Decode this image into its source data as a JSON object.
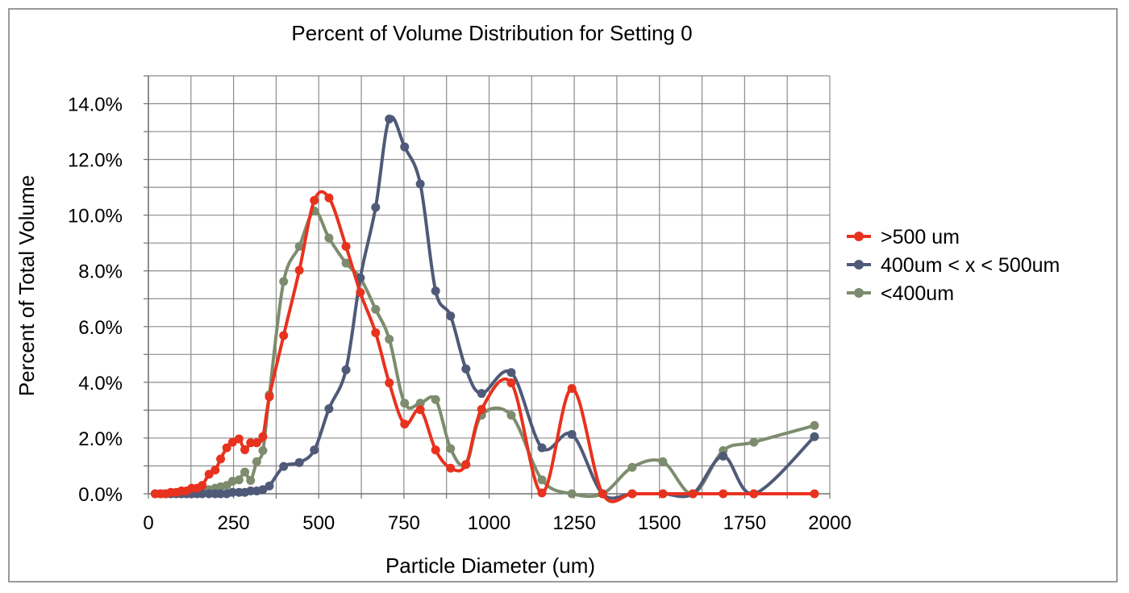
{
  "chart_data": {
    "type": "line",
    "title": "Percent of Volume Distribution for Setting 0",
    "xlabel": "Particle Diameter (um)",
    "ylabel": "Percent of Total Volume",
    "xlim": [
      0,
      2000
    ],
    "ylim": [
      0,
      0.14
    ],
    "x_ticks": [
      0,
      250,
      500,
      750,
      1000,
      1250,
      1500,
      1750,
      2000
    ],
    "x_tick_labels": [
      "0",
      "250",
      "500",
      "750",
      "1000",
      "1250",
      "1500",
      "1750",
      "2000"
    ],
    "y_ticks": [
      0,
      0.02,
      0.04,
      0.06,
      0.08,
      0.1,
      0.12,
      0.14
    ],
    "y_tick_labels": [
      "0.0%",
      "2.0%",
      "4.0%",
      "6.0%",
      "8.0%",
      "10.0%",
      "12.0%",
      "14.0%"
    ],
    "grid": true,
    "legend_position": "right",
    "series": [
      {
        "name": ">500 um",
        "color": "#e8321e",
        "points": [
          [
            20,
            0.0
          ],
          [
            36,
            0.0
          ],
          [
            51,
            0.0
          ],
          [
            66,
            0.0005
          ],
          [
            82,
            0.0005
          ],
          [
            97,
            0.001
          ],
          [
            112,
            0.001
          ],
          [
            127,
            0.002
          ],
          [
            143,
            0.002
          ],
          [
            158,
            0.003
          ],
          [
            178,
            0.007
          ],
          [
            196,
            0.0085
          ],
          [
            212,
            0.0125
          ],
          [
            230,
            0.0165
          ],
          [
            247,
            0.0185
          ],
          [
            266,
            0.0197
          ],
          [
            283,
            0.0158
          ],
          [
            300,
            0.0183
          ],
          [
            318,
            0.0183
          ],
          [
            336,
            0.0205
          ],
          [
            355,
            0.0348
          ],
          [
            397,
            0.0568
          ],
          [
            443,
            0.0802
          ],
          [
            487,
            0.1053
          ],
          [
            530,
            0.1062
          ],
          [
            580,
            0.0888
          ],
          [
            622,
            0.0722
          ],
          [
            667,
            0.0578
          ],
          [
            707,
            0.0398
          ],
          [
            752,
            0.025
          ],
          [
            798,
            0.0302
          ],
          [
            843,
            0.0157
          ],
          [
            887,
            0.0092
          ],
          [
            932,
            0.0105
          ],
          [
            978,
            0.0303
          ],
          [
            1065,
            0.0398
          ],
          [
            1155,
            0.0003
          ],
          [
            1243,
            0.0378
          ],
          [
            1333,
            0.0
          ],
          [
            1420,
            0.0
          ],
          [
            1510,
            0.0
          ],
          [
            1598,
            0.0
          ],
          [
            1687,
            0.0
          ],
          [
            1777,
            0.0
          ],
          [
            1955,
            0.0
          ]
        ]
      },
      {
        "name": "400um < x < 500um",
        "color": "#4f5a78",
        "points": [
          [
            20,
            0.0
          ],
          [
            36,
            0.0
          ],
          [
            51,
            0.0
          ],
          [
            66,
            0.0
          ],
          [
            82,
            0.0
          ],
          [
            97,
            0.0
          ],
          [
            112,
            0.0
          ],
          [
            127,
            0.0
          ],
          [
            143,
            0.0
          ],
          [
            158,
            0.0
          ],
          [
            178,
            0.0
          ],
          [
            196,
            0.0
          ],
          [
            212,
            0.0
          ],
          [
            230,
            0.0
          ],
          [
            247,
            0.0005
          ],
          [
            266,
            0.0005
          ],
          [
            283,
            0.0005
          ],
          [
            300,
            0.001
          ],
          [
            318,
            0.001
          ],
          [
            336,
            0.0015
          ],
          [
            355,
            0.0028
          ],
          [
            397,
            0.0098
          ],
          [
            443,
            0.0112
          ],
          [
            487,
            0.0157
          ],
          [
            530,
            0.0305
          ],
          [
            580,
            0.0445
          ],
          [
            622,
            0.0775
          ],
          [
            667,
            0.1028
          ],
          [
            707,
            0.1345
          ],
          [
            752,
            0.1245
          ],
          [
            798,
            0.1112
          ],
          [
            843,
            0.0728
          ],
          [
            887,
            0.0638
          ],
          [
            932,
            0.0448
          ],
          [
            978,
            0.036
          ],
          [
            1065,
            0.0435
          ],
          [
            1155,
            0.0165
          ],
          [
            1243,
            0.0213
          ],
          [
            1333,
            0.0
          ],
          [
            1420,
            0.0
          ],
          [
            1510,
            0.0
          ],
          [
            1598,
            0.0
          ],
          [
            1687,
            0.0135
          ],
          [
            1777,
            0.0
          ],
          [
            1955,
            0.0205
          ]
        ]
      },
      {
        "name": "<400um",
        "color": "#7d8c6e",
        "points": [
          [
            20,
            0.0
          ],
          [
            36,
            0.0
          ],
          [
            51,
            0.0
          ],
          [
            66,
            0.0
          ],
          [
            82,
            0.0
          ],
          [
            97,
            0.0
          ],
          [
            112,
            0.0
          ],
          [
            127,
            0.0
          ],
          [
            143,
            0.0005
          ],
          [
            158,
            0.001
          ],
          [
            178,
            0.0015
          ],
          [
            196,
            0.002
          ],
          [
            212,
            0.0025
          ],
          [
            230,
            0.003
          ],
          [
            247,
            0.0045
          ],
          [
            266,
            0.005
          ],
          [
            283,
            0.0078
          ],
          [
            300,
            0.0048
          ],
          [
            318,
            0.0115
          ],
          [
            336,
            0.0155
          ],
          [
            355,
            0.0355
          ],
          [
            397,
            0.0762
          ],
          [
            443,
            0.0888
          ],
          [
            487,
            0.1015
          ],
          [
            530,
            0.0918
          ],
          [
            580,
            0.0828
          ],
          [
            622,
            0.0775
          ],
          [
            667,
            0.0662
          ],
          [
            707,
            0.0555
          ],
          [
            752,
            0.0325
          ],
          [
            798,
            0.0325
          ],
          [
            843,
            0.0338
          ],
          [
            887,
            0.0162
          ],
          [
            932,
            0.0105
          ],
          [
            978,
            0.0282
          ],
          [
            1065,
            0.0282
          ],
          [
            1155,
            0.005
          ],
          [
            1243,
            0.0
          ],
          [
            1333,
            0.0
          ],
          [
            1420,
            0.0095
          ],
          [
            1510,
            0.0115
          ],
          [
            1598,
            0.0
          ],
          [
            1687,
            0.0155
          ],
          [
            1777,
            0.0185
          ],
          [
            1955,
            0.0245
          ]
        ]
      }
    ]
  }
}
